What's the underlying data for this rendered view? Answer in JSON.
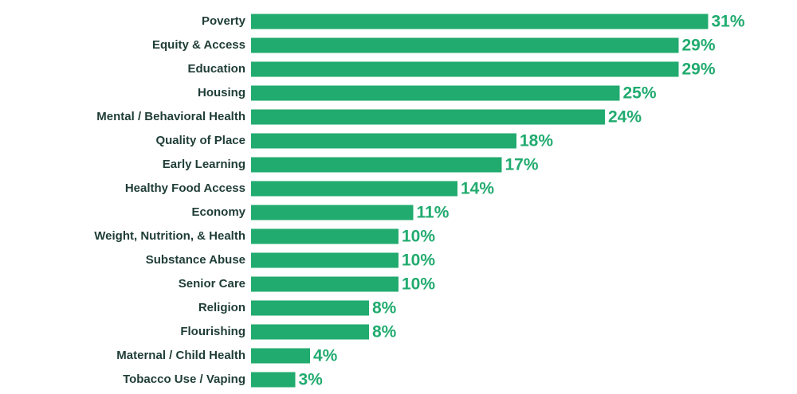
{
  "chart_data": {
    "type": "bar",
    "orientation": "horizontal",
    "color": "#21ab6f",
    "categories": [
      "Poverty",
      "Equity & Access",
      "Education",
      "Housing",
      "Mental / Behavioral Health",
      "Quality of Place",
      "Early Learning",
      "Healthy Food Access",
      "Economy",
      "Weight, Nutrition, & Health",
      "Substance Abuse",
      "Senior Care",
      "Religion",
      "Flourishing",
      "Maternal / Child Health",
      "Tobacco Use / Vaping"
    ],
    "values": [
      31,
      29,
      29,
      25,
      24,
      18,
      17,
      14,
      11,
      10,
      10,
      10,
      8,
      8,
      4,
      3
    ],
    "value_labels": [
      "31%",
      "29%",
      "29%",
      "25%",
      "24%",
      "18%",
      "17%",
      "14%",
      "11%",
      "10%",
      "10%",
      "10%",
      "8%",
      "8%",
      "4%",
      "3%"
    ]
  }
}
